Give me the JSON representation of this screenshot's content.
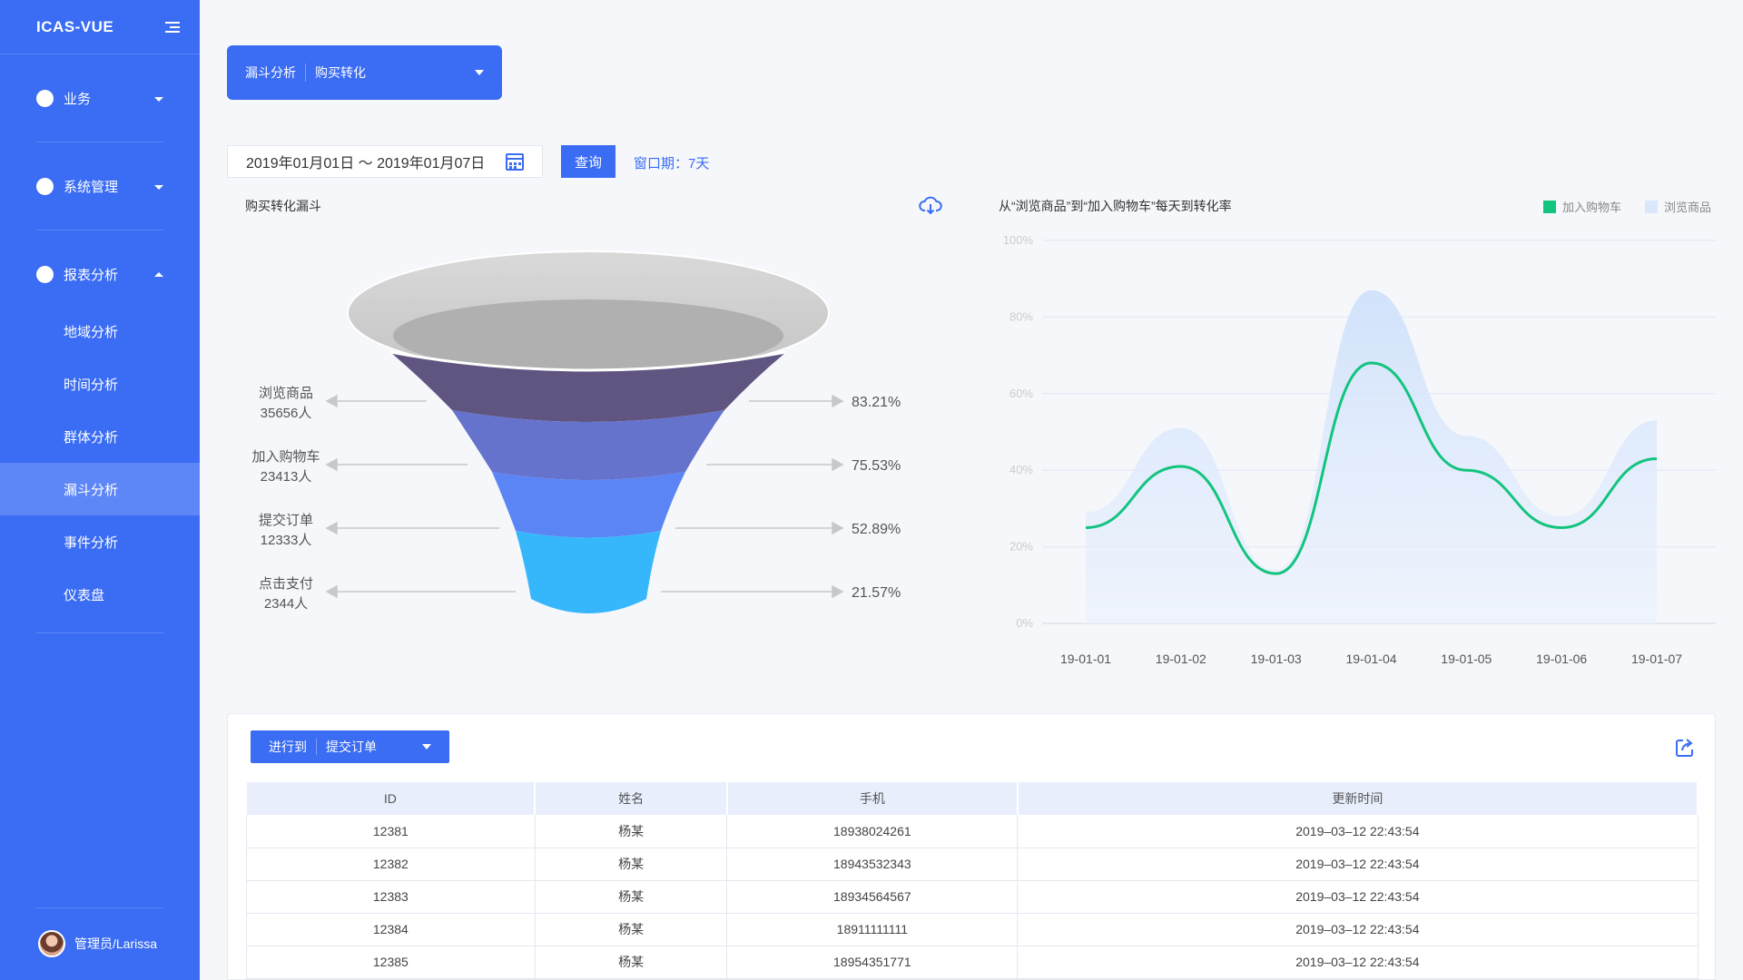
{
  "app": {
    "title": "ICAS-VUE"
  },
  "sidebar": {
    "groups": [
      {
        "label": "业务",
        "expanded": false
      },
      {
        "label": "系统管理",
        "expanded": false
      },
      {
        "label": "报表分析",
        "expanded": true
      }
    ],
    "report_items": [
      {
        "label": "地域分析"
      },
      {
        "label": "时间分析"
      },
      {
        "label": "群体分析"
      },
      {
        "label": "漏斗分析",
        "active": true
      },
      {
        "label": "事件分析"
      },
      {
        "label": "仪表盘"
      }
    ],
    "user": {
      "name": "管理员/Larissa"
    }
  },
  "top_select": {
    "label": "漏斗分析",
    "value": "购买转化"
  },
  "filters": {
    "date_range": "2019年01月01日 ～ 2019年01月07日",
    "query_label": "查询",
    "window_label": "窗口期：7天"
  },
  "funnel": {
    "title": "购买转化漏斗",
    "stages": [
      {
        "name": "浏览商品",
        "count": "35656人",
        "rate": "83.21%",
        "color": "#5f5580"
      },
      {
        "name": "加入购物车",
        "count": "23413人",
        "rate": "75.53%",
        "color": "#6673cc"
      },
      {
        "name": "提交订单",
        "count": "12333人",
        "rate": "52.89%",
        "color": "#5b85f5"
      },
      {
        "name": "点击支付",
        "count": "2344人",
        "rate": "21.57%",
        "color": "#36b6fb"
      }
    ]
  },
  "chart_data": {
    "type": "line",
    "title": "从“浏览商品”到“加入购物车”每天到转化率",
    "categories": [
      "19-01-01",
      "19-01-02",
      "19-01-03",
      "19-01-04",
      "19-01-05",
      "19-01-06",
      "19-01-07"
    ],
    "yticks": [
      "0%",
      "20%",
      "40%",
      "60%",
      "80%",
      "100%"
    ],
    "ylim": [
      0,
      100
    ],
    "legend_position": "top-right",
    "series": [
      {
        "name": "加入购物车",
        "type": "line",
        "color": "#13c47f",
        "values": [
          25,
          41,
          13,
          68,
          40,
          25,
          43
        ]
      },
      {
        "name": "浏览商品",
        "type": "area",
        "color": "#dbe8fc",
        "values": [
          29,
          51,
          14,
          87,
          49,
          28,
          53
        ]
      }
    ]
  },
  "table": {
    "stage_label": "进行到",
    "stage_value": "提交订单",
    "columns": [
      "ID",
      "姓名",
      "手机",
      "更新时间"
    ],
    "rows": [
      [
        "12381",
        "杨某",
        "18938024261",
        "2019–03–12  22:43:54"
      ],
      [
        "12382",
        "杨某",
        "18943532343",
        "2019–03–12  22:43:54"
      ],
      [
        "12383",
        "杨某",
        "18934564567",
        "2019–03–12  22:43:54"
      ],
      [
        "12384",
        "杨某",
        "18911111111",
        "2019–03–12  22:43:54"
      ],
      [
        "12385",
        "杨某",
        "18954351771",
        "2019–03–12  22:43:54"
      ]
    ]
  }
}
